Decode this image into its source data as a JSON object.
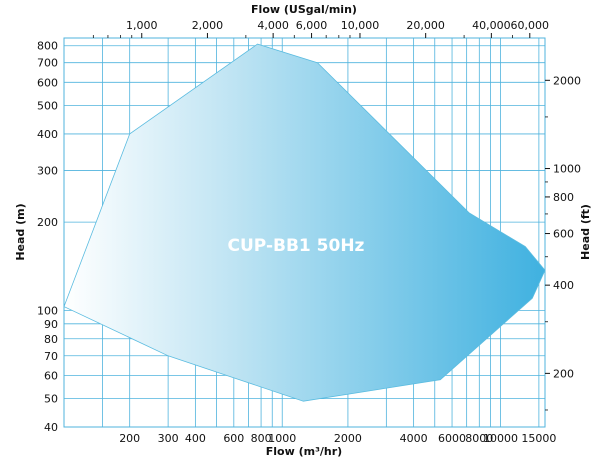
{
  "chart_data": {
    "type": "area",
    "title": "CUP-BB1 50Hz",
    "xlabel": "Flow (m³/hr)",
    "ylabel": "Head (m)",
    "x2label": "Flow (USgal/min)",
    "y2label": "Head (ft)",
    "xscale": "log",
    "yscale": "log",
    "xlim": [
      100,
      16000
    ],
    "ylim": [
      40,
      850
    ],
    "x_ticks": [
      200,
      300,
      400,
      600,
      800,
      1000,
      2000,
      4000,
      6000,
      8000,
      10000,
      15000
    ],
    "x_tick_labels": [
      "200",
      "300",
      "400",
      "600",
      "800",
      "1000",
      "2000",
      "4000",
      "6000",
      "8000",
      "10000",
      "15000"
    ],
    "x_minor_grid": [
      150,
      500,
      700,
      900,
      3000,
      5000,
      7000,
      9000
    ],
    "y_ticks": [
      40,
      50,
      60,
      70,
      80,
      90,
      100,
      200,
      300,
      400,
      500,
      600,
      700,
      800
    ],
    "y_tick_labels": [
      "40",
      "50",
      "60",
      "70",
      "80",
      "90",
      "100",
      "200",
      "300",
      "400",
      "500",
      "600",
      "700",
      "800"
    ],
    "x2_ticks": [
      1000,
      2000,
      4000,
      6000,
      10000,
      20000,
      40000,
      60000
    ],
    "x2_tick_labels": [
      "1,000",
      "2,000",
      "4,000",
      "6,000",
      "10,000",
      "20,000",
      "40,000",
      "60,000"
    ],
    "x2_minor": [
      600,
      700,
      800,
      900,
      3000,
      5000,
      7000,
      8000,
      9000,
      30000,
      50000
    ],
    "y2_ticks": [
      200,
      400,
      600,
      800,
      1000,
      2000
    ],
    "y2_tick_labels": [
      "200",
      "400",
      "600",
      "800",
      "1000",
      "2000"
    ],
    "y2_minor": [
      150,
      300,
      500,
      700,
      900,
      1500
    ],
    "conversions": {
      "usgpm_per_m3h": 4.4029,
      "ft_per_m": 3.2808
    },
    "envelope": {
      "name": "CUP-BB1 50Hz",
      "points": [
        [
          100,
          103
        ],
        [
          200,
          400
        ],
        [
          770,
          810
        ],
        [
          1450,
          700
        ],
        [
          7200,
          215
        ],
        [
          13000,
          165
        ],
        [
          16000,
          137
        ],
        [
          14000,
          110
        ],
        [
          5300,
          58
        ],
        [
          1250,
          49
        ],
        [
          300,
          70
        ]
      ]
    },
    "colors": {
      "grid": "#4fb3dd",
      "fill_start": "#ffffff",
      "fill_end": "#3fb1e0",
      "text": "#111111"
    }
  }
}
